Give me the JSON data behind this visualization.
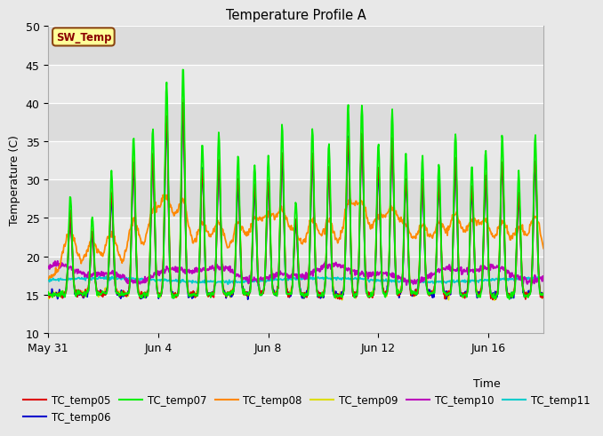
{
  "title": "Temperature Profile A",
  "xlabel": "Time",
  "ylabel": "Temperature (C)",
  "ylim": [
    10,
    50
  ],
  "xlim": [
    0,
    18
  ],
  "fig_bg_color": "#e8e8e8",
  "plot_bg_color": "#f0f0f0",
  "sw_temp_label": "SW_Temp",
  "sw_temp_box_color": "#ffff99",
  "sw_temp_text_color": "#8b0000",
  "sw_temp_edge_color": "#8b4513",
  "xtick_labels": [
    "May 31",
    "Jun 4",
    "Jun 8",
    "Jun 12",
    "Jun 16"
  ],
  "xtick_positions": [
    0,
    4,
    8,
    12,
    16
  ],
  "ytick_positions": [
    10,
    15,
    20,
    25,
    30,
    35,
    40,
    45,
    50
  ],
  "series_colors": {
    "TC_temp05": "#dd0000",
    "TC_temp06": "#0000cc",
    "TC_temp07": "#00ee00",
    "TC_temp08": "#ff8800",
    "TC_temp09": "#dddd00",
    "TC_temp10": "#bb00bb",
    "TC_temp11": "#00cccc"
  },
  "legend_entries": [
    "TC_temp05",
    "TC_temp06",
    "TC_temp07",
    "TC_temp08",
    "TC_temp09",
    "TC_temp10",
    "TC_temp11"
  ],
  "seed": 7,
  "n_points": 800
}
